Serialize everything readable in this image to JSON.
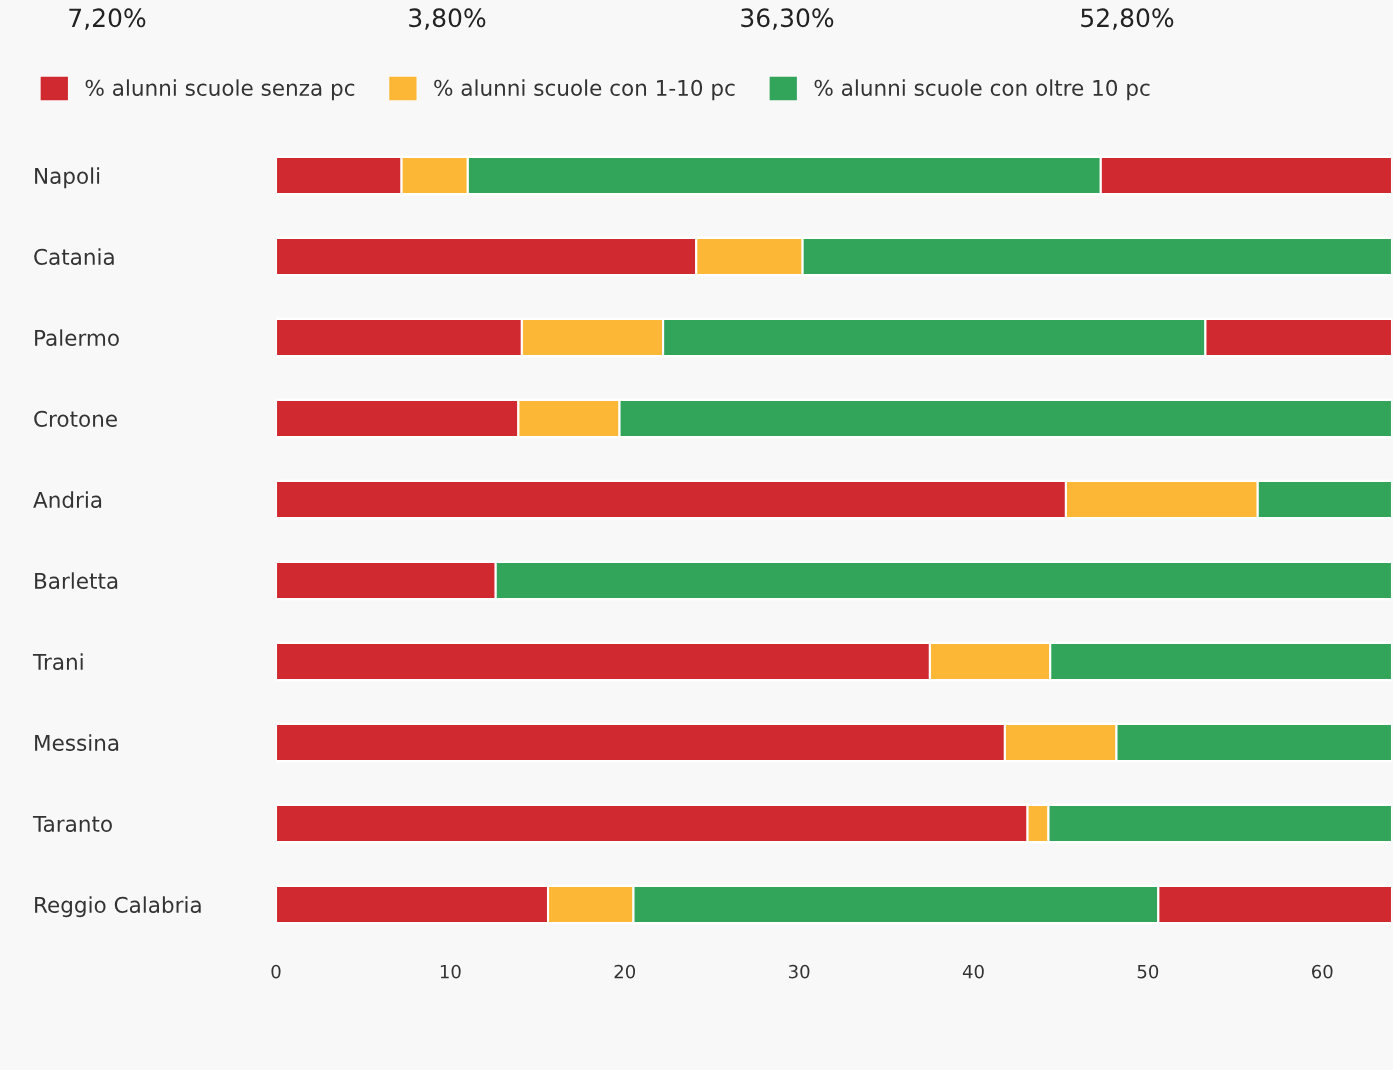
{
  "chart_data": {
    "type": "bar",
    "orientation": "horizontal",
    "stacked": true,
    "categories": [
      "Napoli",
      "Catania",
      "Palermo",
      "Crotone",
      "Andria",
      "Barletta",
      "Trani",
      "Messina",
      "Taranto",
      "Reggio Calabria"
    ],
    "series": [
      {
        "name": "% alunni scuole senza pc",
        "color": "#d0292f",
        "values": [
          7.2,
          24.1,
          14.1,
          13.9,
          45.3,
          12.6,
          37.5,
          41.8,
          43.1,
          15.6
        ]
      },
      {
        "name": "% alunni scuole con 1-10 pc",
        "color": "#fdb737",
        "values": [
          3.8,
          6.1,
          8.1,
          5.8,
          11.0,
          0,
          6.9,
          6.4,
          1.2,
          4.9
        ]
      },
      {
        "name": "% alunni scuole con oltre 10 pc",
        "color": "#33a55b",
        "values": [
          36.3,
          33.8,
          31.1,
          44.3,
          7.7,
          51.4,
          19.6,
          15.8,
          19.7,
          30.1
        ]
      },
      {
        "color": "#d0292f",
        "values": [
          16.7,
          null,
          10.7,
          null,
          null,
          null,
          null,
          null,
          null,
          13.4
        ]
      }
    ],
    "xlim": [
      0,
      64
    ],
    "xticks": [
      0,
      10,
      20,
      30,
      40,
      50,
      60
    ],
    "grid": false,
    "legend": "top",
    "annotations": [
      "7,20%",
      "3,80%",
      "36,30%",
      "52,80%"
    ]
  }
}
